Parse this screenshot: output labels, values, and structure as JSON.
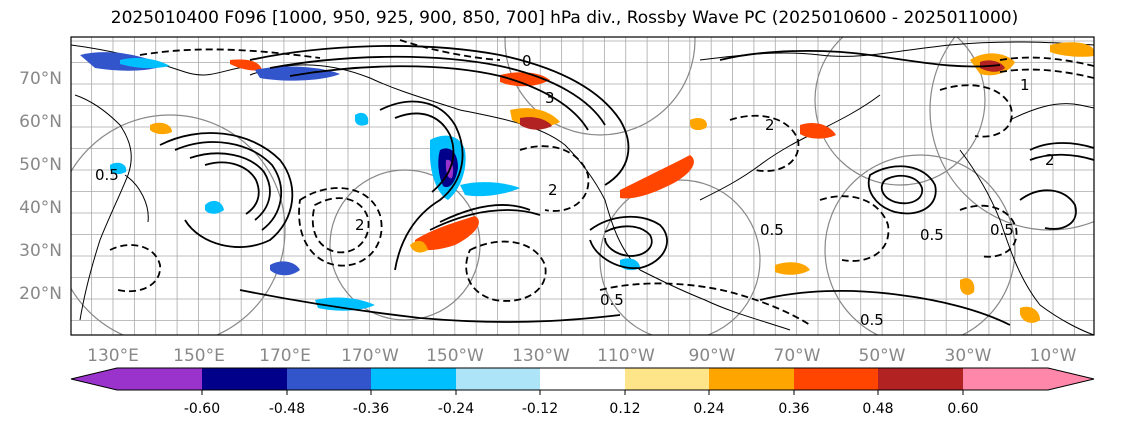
{
  "title": "2025010400 F096 [1000, 950, 925, 900, 850, 700] hPa div., Rossby Wave PC (2025010600 - 2025011000)",
  "map": {
    "lat_labels": [
      "70°N",
      "60°N",
      "50°N",
      "40°N",
      "30°N",
      "20°N"
    ],
    "lon_labels": [
      "130°E",
      "150°E",
      "170°E",
      "170°W",
      "150°W",
      "130°W",
      "110°W",
      "90°W",
      "70°W",
      "50°W",
      "30°W",
      "10°W"
    ],
    "contour_labels": [
      "0",
      "2",
      "3",
      "0.5",
      "2",
      "0.5",
      "0.5",
      "1",
      "0.5",
      "2",
      "0.5",
      "0.5",
      "2"
    ]
  },
  "colorbar": {
    "colors": [
      "#9933cc",
      "#00008b",
      "#3355cc",
      "#00bfff",
      "#ade4f7",
      "#ffffff",
      "#ffe58a",
      "#ffa500",
      "#ff4500",
      "#b22222",
      "#ff88aa"
    ],
    "tick_labels": [
      "-0.60",
      "-0.48",
      "-0.36",
      "-0.24",
      "-0.12",
      "0.12",
      "0.24",
      "0.36",
      "0.48",
      "0.60"
    ]
  }
}
